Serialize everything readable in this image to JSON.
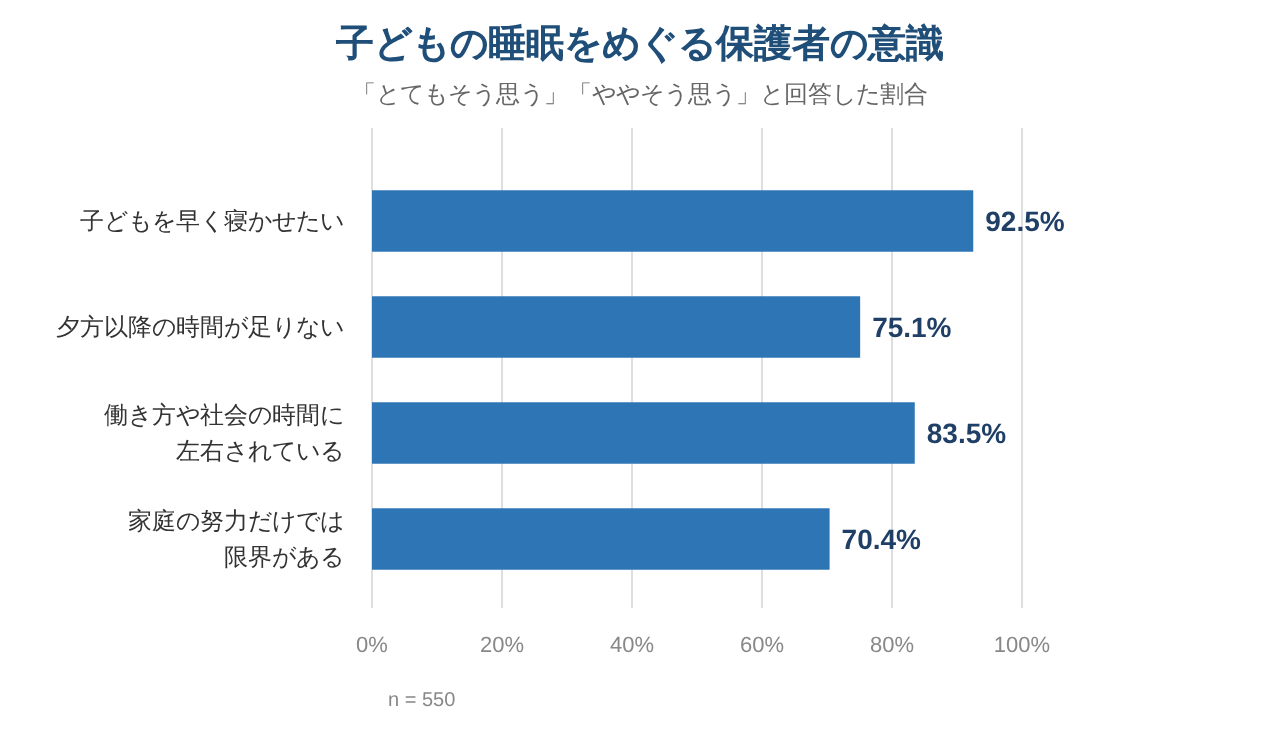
{
  "chart_data": {
    "type": "bar",
    "orientation": "horizontal",
    "title": "子どもの睡眠をめぐる保護者の意識",
    "subtitle": "「とてもそう思う」「ややそう思う」と回答した割合",
    "categories": [
      "子どもを早く寝かせたい",
      "夕方以降の時間が足りない",
      "働き方や社会の時間に左右されている",
      "家庭の努力だけでは限界がある"
    ],
    "values": [
      92.5,
      75.1,
      83.5,
      70.4
    ],
    "value_labels": [
      "92.5%",
      "75.1%",
      "83.5%",
      "70.4%"
    ],
    "color": "#2e75b6",
    "xlim": [
      0,
      100
    ],
    "xticks": [
      {
        "value": 0,
        "label": "0%"
      },
      {
        "value": 20,
        "label": "20%"
      },
      {
        "value": 40,
        "label": "40%"
      },
      {
        "value": 60,
        "label": "60%"
      },
      {
        "value": 80,
        "label": "80%"
      },
      {
        "value": 100,
        "label": "100%"
      }
    ],
    "grid": "x",
    "annotations": [
      "n = 550"
    ]
  }
}
